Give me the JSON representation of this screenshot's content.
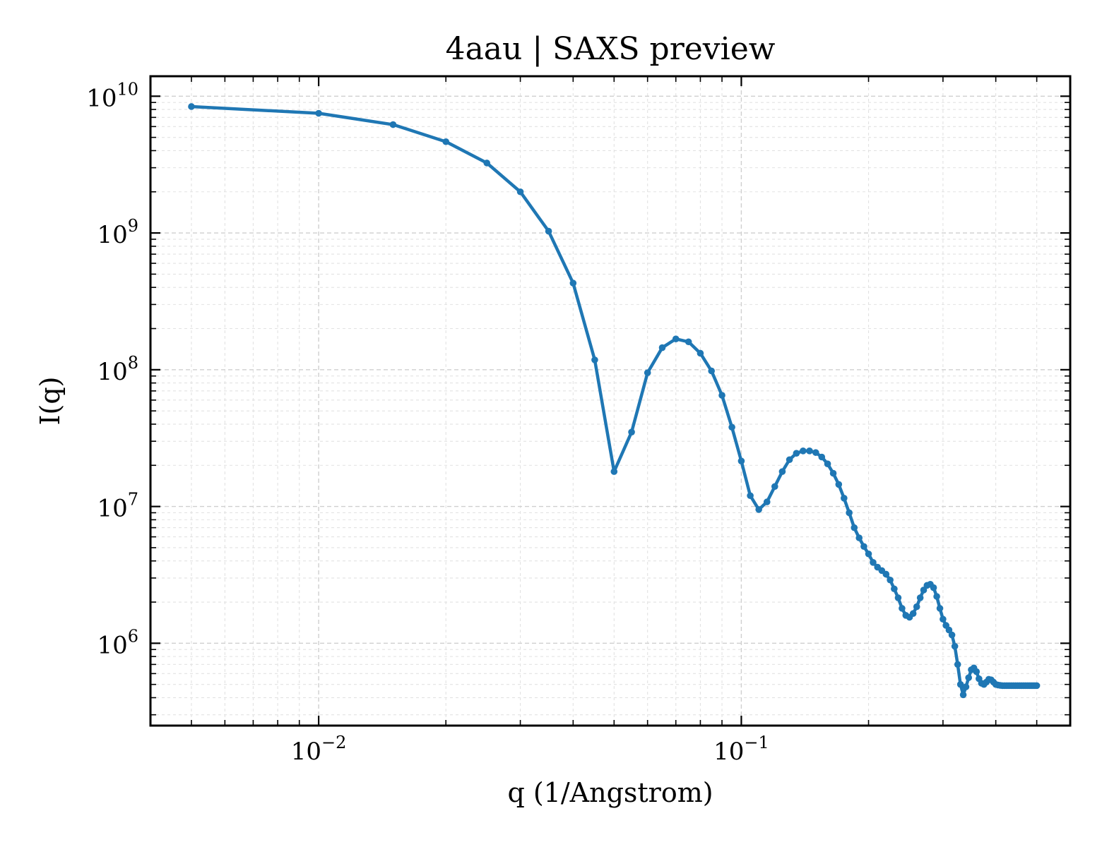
{
  "chart_data": {
    "type": "line",
    "title": "4aau | SAXS preview",
    "xlabel": "q (1/Angstrom)",
    "ylabel": "I(q)",
    "xscale": "log",
    "yscale": "log",
    "xlim": [
      0.004,
      0.6
    ],
    "ylim": [
      250000,
      14000000000
    ],
    "grid": true,
    "color": "#1f77b4",
    "x_ticks": [
      {
        "base": "10",
        "exp": "−2",
        "value": 0.01
      },
      {
        "base": "10",
        "exp": "−1",
        "value": 0.1
      }
    ],
    "y_ticks": [
      {
        "base": "10",
        "exp": "6",
        "value": 1000000
      },
      {
        "base": "10",
        "exp": "7",
        "value": 10000000
      },
      {
        "base": "10",
        "exp": "8",
        "value": 100000000
      },
      {
        "base": "10",
        "exp": "9",
        "value": 1000000000
      },
      {
        "base": "10",
        "exp": "10",
        "value": 10000000000
      }
    ],
    "series": [
      {
        "x": [
          0.005,
          0.01,
          0.015,
          0.02,
          0.025,
          0.03,
          0.035,
          0.04,
          0.045,
          0.05,
          0.055,
          0.06,
          0.065,
          0.07,
          0.075,
          0.08,
          0.085,
          0.09,
          0.095,
          0.1,
          0.105,
          0.11,
          0.115,
          0.12,
          0.125,
          0.13,
          0.135,
          0.14,
          0.145,
          0.15,
          0.155,
          0.16,
          0.165,
          0.17,
          0.175,
          0.18,
          0.185,
          0.19,
          0.195,
          0.2,
          0.205,
          0.21,
          0.215,
          0.22,
          0.225,
          0.23,
          0.235,
          0.24,
          0.245,
          0.25,
          0.255,
          0.26,
          0.265,
          0.27,
          0.275,
          0.28,
          0.285,
          0.29,
          0.295,
          0.3,
          0.305,
          0.31,
          0.315,
          0.32,
          0.325,
          0.33,
          0.335,
          0.34,
          0.345,
          0.35,
          0.355,
          0.36,
          0.365,
          0.37,
          0.375,
          0.38,
          0.385,
          0.39,
          0.395,
          0.4,
          0.405,
          0.41,
          0.415,
          0.42,
          0.425,
          0.43,
          0.435,
          0.44,
          0.445,
          0.45,
          0.455,
          0.46,
          0.465,
          0.47,
          0.475,
          0.48,
          0.485,
          0.49,
          0.495,
          0.5
        ],
        "y": [
          8400000000,
          7500000000,
          6200000000,
          4650000000,
          3250000000,
          2000000000,
          1030000000,
          430000000,
          118000000,
          18000000,
          35000000,
          95000000,
          145000000,
          168000000,
          160000000,
          132000000,
          98000000,
          65000000,
          38000000,
          21500000,
          12000000,
          9500000,
          10800000,
          14000000,
          18000000,
          22000000,
          24500000,
          25500000,
          25500000,
          24800000,
          23000000,
          20500000,
          17500000,
          14500000,
          11500000,
          9000000,
          7000000,
          5900000,
          5100000,
          4500000,
          3900000,
          3600000,
          3400000,
          3200000,
          2900000,
          2500000,
          2150000,
          1800000,
          1600000,
          1550000,
          1650000,
          1850000,
          2150000,
          2450000,
          2650000,
          2700000,
          2550000,
          2200000,
          1800000,
          1500000,
          1350000,
          1250000,
          1150000,
          950000,
          700000,
          500000,
          420000,
          480000,
          560000,
          640000,
          660000,
          620000,
          550000,
          510000,
          500000,
          520000,
          545000,
          540000,
          520000,
          500000,
          495000,
          492000,
          490000,
          490000,
          490000,
          490000,
          490000,
          490000,
          490000,
          490000,
          490000,
          490000,
          490000,
          490000,
          490000,
          490000,
          490000,
          490000,
          490000,
          490000
        ]
      }
    ]
  }
}
